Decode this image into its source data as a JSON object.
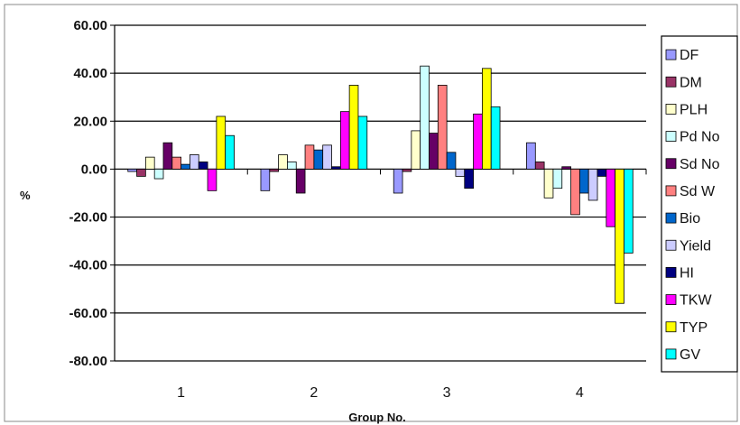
{
  "chart_data": {
    "type": "bar",
    "xlabel": "Group No.",
    "ylabel": "%",
    "ylim": [
      -80,
      60
    ],
    "yticks": [
      "60.00",
      "40.00",
      "20.00",
      "0.00",
      "-20.00",
      "-40.00",
      "-60.00",
      "-80.00"
    ],
    "categories": [
      "1",
      "2",
      "3",
      "4"
    ],
    "grid": true,
    "legend_position": "right",
    "series": [
      {
        "name": "DF",
        "color": "#9999ff",
        "values": [
          -1,
          -9,
          -10,
          11
        ]
      },
      {
        "name": "DM",
        "color": "#993366",
        "values": [
          -3,
          -1,
          -1,
          3
        ]
      },
      {
        "name": "PLH",
        "color": "#ffffcc",
        "values": [
          5,
          6,
          16,
          -12
        ]
      },
      {
        "name": "Pd No",
        "color": "#ccffff",
        "values": [
          -4,
          3,
          43,
          -8
        ]
      },
      {
        "name": "Sd No",
        "color": "#660066",
        "values": [
          11,
          -10,
          15,
          1
        ]
      },
      {
        "name": "Sd W",
        "color": "#ff8080",
        "values": [
          5,
          10,
          35,
          -19
        ]
      },
      {
        "name": "Bio",
        "color": "#0066cc",
        "values": [
          2,
          8,
          7,
          -10
        ]
      },
      {
        "name": "Yield",
        "color": "#ccccff",
        "values": [
          6,
          10,
          -3,
          -13
        ]
      },
      {
        "name": "HI",
        "color": "#000080",
        "values": [
          3,
          1,
          -8,
          -3
        ]
      },
      {
        "name": "TKW",
        "color": "#ff00ff",
        "values": [
          -9,
          24,
          23,
          -24
        ]
      },
      {
        "name": "TYP",
        "color": "#ffff00",
        "values": [
          22,
          35,
          42,
          -56
        ]
      },
      {
        "name": "GV",
        "color": "#00ffff",
        "values": [
          14,
          22,
          26,
          -35
        ]
      }
    ]
  }
}
